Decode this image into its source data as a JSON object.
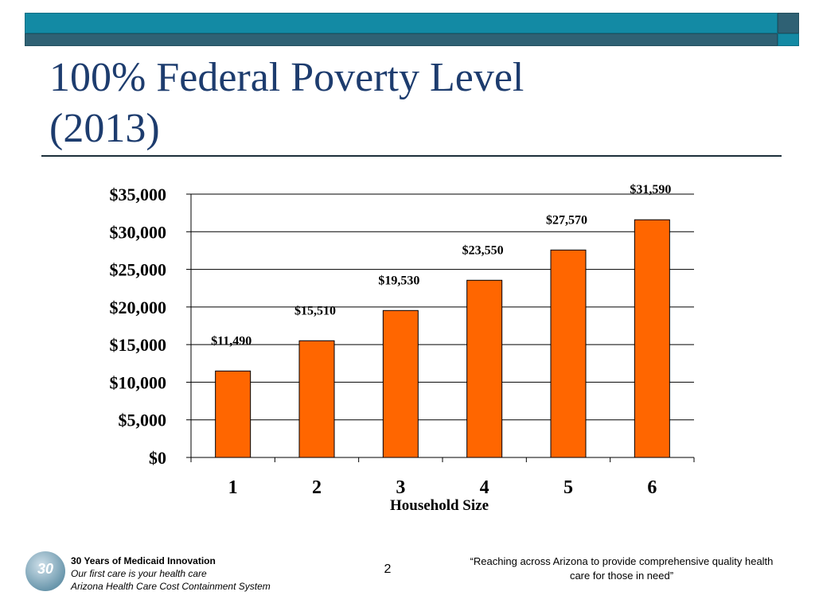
{
  "slide": {
    "title_line1": "100% Federal Poverty Level",
    "title_line2": "(2013)",
    "page_number": "2",
    "colors": {
      "header": "#138aa4",
      "header_dark": "#2f6174",
      "title": "#1d3c6e",
      "bar": "#ff6600"
    }
  },
  "footer": {
    "logo_text": "30",
    "line1": "30 Years of Medicaid Innovation",
    "line2": "Our first care is your health care",
    "line3": "Arizona Health Care Cost Containment System",
    "quote": "“Reaching across Arizona to provide comprehensive quality health care for those in need”"
  },
  "chart_data": {
    "type": "bar",
    "title": "",
    "categories": [
      "1",
      "2",
      "3",
      "4",
      "5",
      "6"
    ],
    "values": [
      11490,
      15510,
      19530,
      23550,
      27570,
      31590
    ],
    "data_labels": [
      "$11,490",
      "$15,510",
      "$19,530",
      "$23,550",
      "$27,570",
      "$31,590"
    ],
    "xlabel": "Household Size",
    "ylabel": "",
    "ylim": [
      0,
      35000
    ],
    "yticks": [
      0,
      5000,
      10000,
      15000,
      20000,
      25000,
      30000,
      35000
    ],
    "ytick_labels": [
      "$0",
      "$5,000",
      "$10,000",
      "$15,000",
      "$20,000",
      "$25,000",
      "$30,000",
      "$35,000"
    ],
    "grid": true,
    "legend": "none"
  }
}
